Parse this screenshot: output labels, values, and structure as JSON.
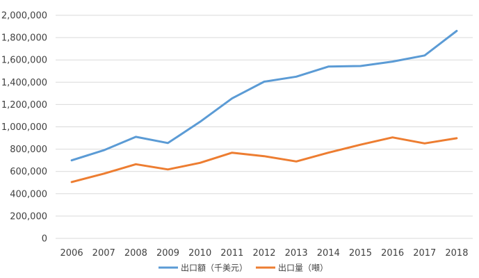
{
  "chart_data": {
    "type": "line",
    "title": "",
    "xlabel": "",
    "ylabel": "",
    "x": [
      "2006",
      "2007",
      "2008",
      "2009",
      "2010",
      "2011",
      "2012",
      "2013",
      "2014",
      "2015",
      "2016",
      "2017",
      "2018"
    ],
    "ylim": [
      0,
      2000000
    ],
    "yticks": [
      0,
      200000,
      400000,
      600000,
      800000,
      1000000,
      1200000,
      1400000,
      1600000,
      1800000,
      2000000
    ],
    "ytick_labels": [
      "0",
      "200,000",
      "400,000",
      "600,000",
      "800,000",
      "1,000,000",
      "1,200,000",
      "1,400,000",
      "1,600,000",
      "1,800,000",
      "2,000,000"
    ],
    "grid": "horizontal",
    "legend_position": "bottom",
    "series": [
      {
        "name": "出口額（千美元）",
        "color": "#5B9BD5",
        "values": [
          700000,
          790000,
          910000,
          855000,
          1045000,
          1255000,
          1405000,
          1450000,
          1540000,
          1545000,
          1585000,
          1640000,
          1860000
        ]
      },
      {
        "name": "出口量（噸）",
        "color": "#ED7D31",
        "values": [
          505000,
          580000,
          665000,
          618000,
          677000,
          768000,
          737000,
          690000,
          768000,
          840000,
          905000,
          852000,
          898000
        ]
      }
    ]
  }
}
